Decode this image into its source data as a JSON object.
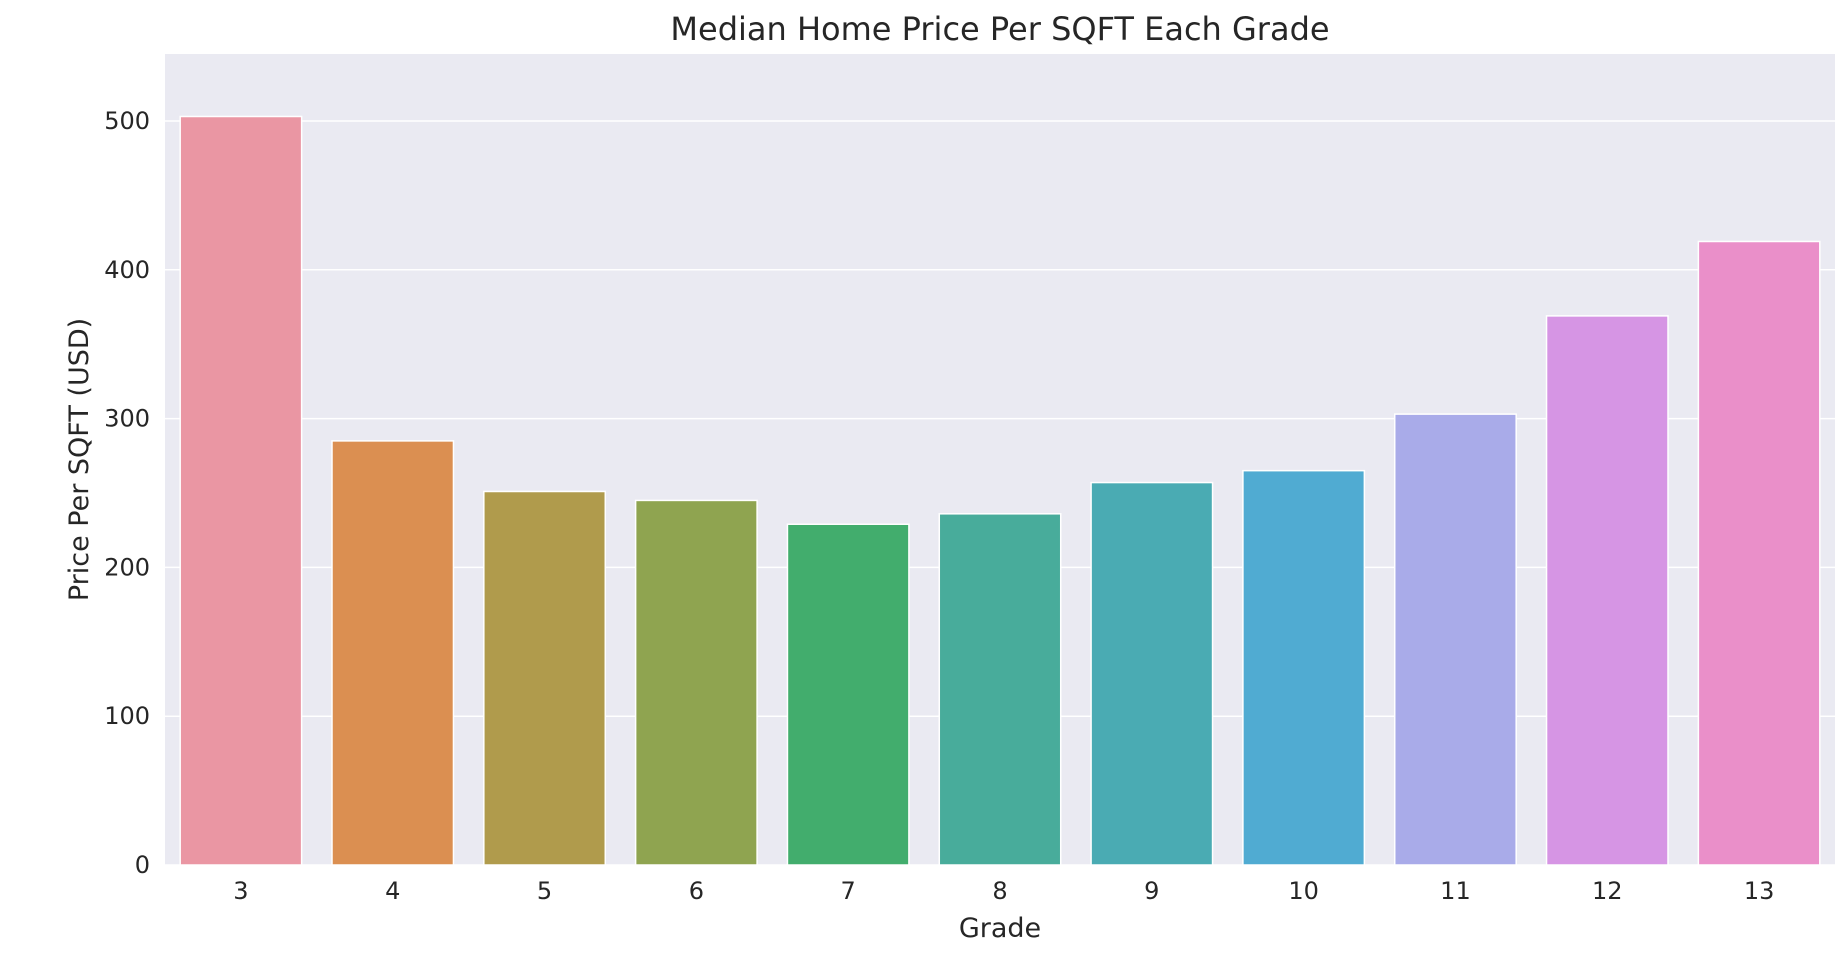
{
  "chart_data": {
    "type": "bar",
    "title": "Median Home Price Per SQFT Each Grade",
    "xlabel": "Grade",
    "ylabel": "Price Per SQFT (USD)",
    "categories": [
      "3",
      "4",
      "5",
      "6",
      "7",
      "8",
      "9",
      "10",
      "11",
      "12",
      "13"
    ],
    "values": [
      503,
      285,
      251,
      245,
      229,
      236,
      257,
      265,
      303,
      369,
      419
    ],
    "colors": [
      "#ea96a3",
      "#db8f51",
      "#b09b4c",
      "#8fa450",
      "#42ad6d",
      "#48ac9b",
      "#4aabb3",
      "#50abd2",
      "#a9abe9",
      "#d695e4",
      "#ea8fc9"
    ],
    "ylim": [
      0,
      545
    ],
    "yticks": [
      0,
      100,
      200,
      300,
      400,
      500
    ],
    "grid": true,
    "background": "#eaeaf2",
    "grid_color": "#ffffff",
    "text_color": "#262626",
    "legend": "none"
  }
}
